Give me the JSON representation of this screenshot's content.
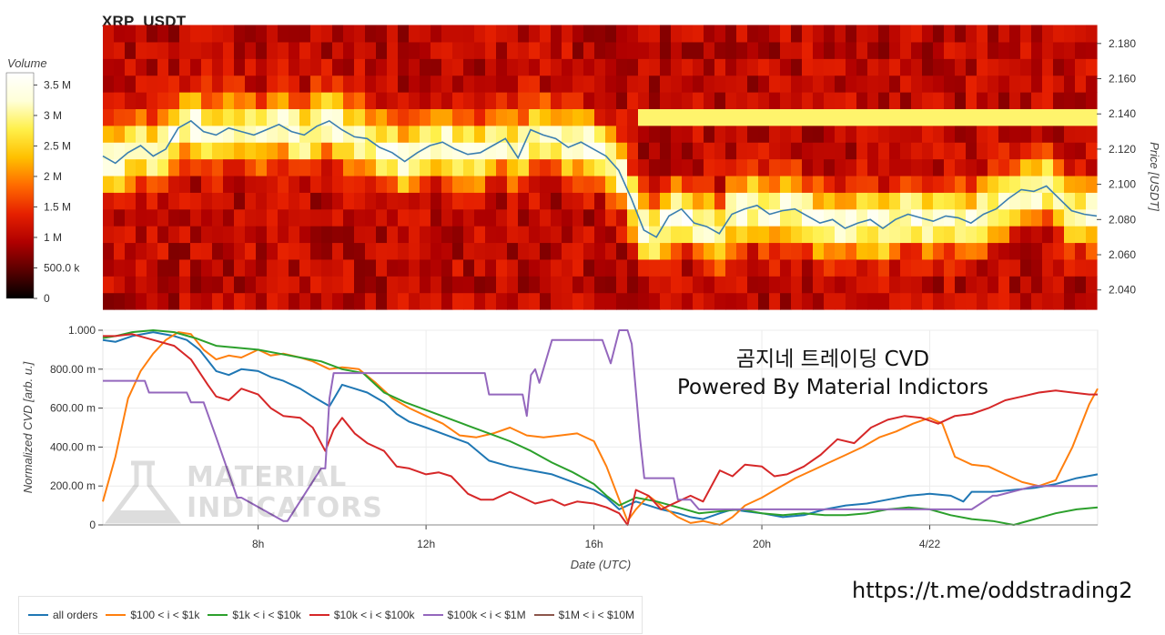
{
  "title": "XRP_USDT",
  "overlay": {
    "line1": "곰지네 트레이딩 CVD",
    "line2": "Powered By Material Indictors"
  },
  "url": "https://t.me/oddstrading2",
  "watermark": {
    "line1": "MATERIAL",
    "line2": "INDICATORS"
  },
  "heatmap": {
    "colorbar_label": "Volume",
    "colorbar_ticks": [
      {
        "v": 0,
        "label": "0"
      },
      {
        "v": 0.5,
        "label": "500.0 k"
      },
      {
        "v": 1,
        "label": "1 M"
      },
      {
        "v": 1.5,
        "label": "1.5 M"
      },
      {
        "v": 2,
        "label": "2 M"
      },
      {
        "v": 2.5,
        "label": "2.5 M"
      },
      {
        "v": 3,
        "label": "3 M"
      },
      {
        "v": 3.5,
        "label": "3.5 M"
      }
    ],
    "colorbar_max": 3.7,
    "ylabel": "Price [USDT]",
    "price_ticks": [
      {
        "v": 2.18,
        "label": "2.180"
      },
      {
        "v": 2.16,
        "label": "2.160"
      },
      {
        "v": 2.14,
        "label": "2.140"
      },
      {
        "v": 2.12,
        "label": "2.120"
      },
      {
        "v": 2.1,
        "label": "2.100"
      },
      {
        "v": 2.08,
        "label": "2.080"
      },
      {
        "v": 2.06,
        "label": "2.060"
      },
      {
        "v": 2.04,
        "label": "2.040"
      }
    ],
    "price_range": [
      2.029,
      2.183
    ],
    "colors": [
      "#000000",
      "#5a0000",
      "#b00000",
      "#e62000",
      "#ff6a00",
      "#ffc000",
      "#fff04a",
      "#ffffd8",
      "#ffffff"
    ]
  },
  "chart_data": {
    "type": "line",
    "x_range": [
      4.3,
      28.0
    ],
    "x_ticks": [
      {
        "v": 8,
        "label": "8h"
      },
      {
        "v": 12,
        "label": "12h"
      },
      {
        "v": 16,
        "label": "16h"
      },
      {
        "v": 20,
        "label": "20h"
      },
      {
        "v": 24,
        "label": "4/22"
      }
    ],
    "xlabel": "Date (UTC)",
    "ylabel": "Normalized CVD [arb. u.]",
    "ylim": [
      0,
      1
    ],
    "y_ticks": [
      {
        "v": 0,
        "label": "0"
      },
      {
        "v": 0.2,
        "label": "200.00 m"
      },
      {
        "v": 0.4,
        "label": "400.00 m"
      },
      {
        "v": 0.6,
        "label": "600.00 m"
      },
      {
        "v": 0.8,
        "label": "800.00 m"
      },
      {
        "v": 1.0,
        "label": "1.000"
      }
    ],
    "price_series": {
      "x": [
        4.3,
        4.6,
        4.9,
        5.2,
        5.5,
        5.8,
        6.1,
        6.4,
        6.7,
        7.0,
        7.3,
        7.6,
        7.9,
        8.2,
        8.5,
        8.8,
        9.1,
        9.4,
        9.7,
        10.0,
        10.3,
        10.6,
        10.9,
        11.2,
        11.5,
        11.8,
        12.1,
        12.4,
        12.7,
        13.0,
        13.3,
        13.6,
        13.9,
        14.2,
        14.5,
        14.8,
        15.1,
        15.4,
        15.7,
        16.0,
        16.3,
        16.6,
        16.9,
        17.2,
        17.5,
        17.8,
        18.1,
        18.4,
        18.7,
        19.0,
        19.3,
        19.6,
        19.9,
        20.2,
        20.5,
        20.8,
        21.1,
        21.4,
        21.7,
        22.0,
        22.3,
        22.6,
        22.9,
        23.2,
        23.5,
        23.8,
        24.1,
        24.4,
        24.7,
        25.0,
        25.3,
        25.6,
        25.9,
        26.2,
        26.5,
        26.8,
        27.1,
        27.4,
        27.7,
        28.0
      ],
      "y": [
        2.116,
        2.112,
        2.118,
        2.122,
        2.116,
        2.12,
        2.132,
        2.136,
        2.13,
        2.128,
        2.132,
        2.13,
        2.128,
        2.131,
        2.134,
        2.13,
        2.128,
        2.133,
        2.136,
        2.131,
        2.127,
        2.126,
        2.121,
        2.118,
        2.113,
        2.118,
        2.122,
        2.124,
        2.12,
        2.117,
        2.118,
        2.122,
        2.126,
        2.115,
        2.131,
        2.128,
        2.126,
        2.121,
        2.124,
        2.12,
        2.116,
        2.108,
        2.092,
        2.074,
        2.07,
        2.082,
        2.086,
        2.078,
        2.076,
        2.072,
        2.083,
        2.086,
        2.088,
        2.083,
        2.085,
        2.086,
        2.082,
        2.078,
        2.08,
        2.075,
        2.078,
        2.08,
        2.075,
        2.08,
        2.083,
        2.081,
        2.079,
        2.082,
        2.081,
        2.078,
        2.083,
        2.086,
        2.092,
        2.097,
        2.096,
        2.099,
        2.092,
        2.085,
        2.083,
        2.082
      ]
    },
    "series": [
      {
        "name": "all orders",
        "color": "#1f77b4",
        "x": [
          4.3,
          4.6,
          5.0,
          5.5,
          6.0,
          6.3,
          6.6,
          7.0,
          7.3,
          7.6,
          8.0,
          8.3,
          8.6,
          9.0,
          9.3,
          9.7,
          10.0,
          10.3,
          10.6,
          11.0,
          11.3,
          11.6,
          12.0,
          12.5,
          13.0,
          13.5,
          14.0,
          14.5,
          15.0,
          15.5,
          16.0,
          16.3,
          16.6,
          17.0,
          17.3,
          17.6,
          18.0,
          18.3,
          18.6,
          19.0,
          19.3,
          19.6,
          20.0,
          20.5,
          21.0,
          21.5,
          22.0,
          22.5,
          23.0,
          23.5,
          24.0,
          24.5,
          24.8,
          25.0,
          25.5,
          26.0,
          26.5,
          27.0,
          27.5,
          28.0
        ],
        "y": [
          0.95,
          0.94,
          0.97,
          0.99,
          0.97,
          0.95,
          0.9,
          0.79,
          0.77,
          0.8,
          0.79,
          0.76,
          0.74,
          0.7,
          0.66,
          0.61,
          0.72,
          0.7,
          0.68,
          0.63,
          0.57,
          0.53,
          0.5,
          0.46,
          0.42,
          0.33,
          0.3,
          0.28,
          0.26,
          0.22,
          0.18,
          0.14,
          0.08,
          0.12,
          0.1,
          0.08,
          0.06,
          0.04,
          0.03,
          0.06,
          0.08,
          0.07,
          0.06,
          0.04,
          0.05,
          0.08,
          0.1,
          0.11,
          0.13,
          0.15,
          0.16,
          0.15,
          0.12,
          0.17,
          0.17,
          0.18,
          0.19,
          0.21,
          0.24,
          0.26
        ]
      },
      {
        "name": "$100 < i < $1k",
        "color": "#ff7f0e",
        "x": [
          4.3,
          4.6,
          4.9,
          5.2,
          5.5,
          5.8,
          6.1,
          6.4,
          6.7,
          7.0,
          7.3,
          7.6,
          8.0,
          8.3,
          8.6,
          9.0,
          9.3,
          9.7,
          10.0,
          10.4,
          10.8,
          11.2,
          11.6,
          12.0,
          12.4,
          12.8,
          13.2,
          13.6,
          14.0,
          14.4,
          14.8,
          15.2,
          15.6,
          16.0,
          16.3,
          16.6,
          16.8,
          17.0,
          17.3,
          17.6,
          18.0,
          18.3,
          18.6,
          19.0,
          19.3,
          19.6,
          20.0,
          20.4,
          20.8,
          21.2,
          21.6,
          22.0,
          22.4,
          22.8,
          23.2,
          23.6,
          24.0,
          24.3,
          24.6,
          25.0,
          25.4,
          25.8,
          26.2,
          26.6,
          27.0,
          27.4,
          27.8,
          28.0
        ],
        "y": [
          0.12,
          0.35,
          0.65,
          0.79,
          0.88,
          0.95,
          0.99,
          0.98,
          0.9,
          0.85,
          0.87,
          0.86,
          0.9,
          0.87,
          0.88,
          0.86,
          0.84,
          0.8,
          0.81,
          0.8,
          0.73,
          0.65,
          0.6,
          0.56,
          0.52,
          0.46,
          0.45,
          0.47,
          0.5,
          0.46,
          0.45,
          0.46,
          0.47,
          0.43,
          0.3,
          0.13,
          0.02,
          0.08,
          0.15,
          0.1,
          0.04,
          0.01,
          0.02,
          0.0,
          0.04,
          0.1,
          0.14,
          0.19,
          0.24,
          0.28,
          0.32,
          0.36,
          0.4,
          0.45,
          0.48,
          0.52,
          0.55,
          0.52,
          0.35,
          0.31,
          0.3,
          0.26,
          0.22,
          0.2,
          0.23,
          0.4,
          0.62,
          0.7
        ]
      },
      {
        "name": "$1k < i < $10k",
        "color": "#2ca02c",
        "x": [
          4.3,
          4.6,
          5.0,
          5.5,
          6.0,
          6.5,
          7.0,
          7.5,
          8.0,
          8.5,
          9.0,
          9.5,
          10.0,
          10.5,
          11.0,
          11.5,
          12.0,
          12.5,
          13.0,
          13.5,
          14.0,
          14.5,
          15.0,
          15.5,
          16.0,
          16.3,
          16.6,
          17.0,
          17.5,
          18.0,
          18.5,
          19.0,
          19.5,
          20.0,
          20.5,
          21.0,
          21.5,
          22.0,
          22.5,
          23.0,
          23.5,
          24.0,
          24.5,
          25.0,
          25.5,
          26.0,
          26.5,
          27.0,
          27.5,
          28.0
        ],
        "y": [
          0.96,
          0.97,
          0.99,
          1.0,
          0.99,
          0.96,
          0.92,
          0.91,
          0.9,
          0.88,
          0.86,
          0.84,
          0.8,
          0.78,
          0.68,
          0.63,
          0.59,
          0.55,
          0.51,
          0.47,
          0.43,
          0.38,
          0.32,
          0.27,
          0.21,
          0.15,
          0.1,
          0.14,
          0.12,
          0.09,
          0.06,
          0.07,
          0.08,
          0.06,
          0.05,
          0.06,
          0.05,
          0.05,
          0.06,
          0.08,
          0.09,
          0.08,
          0.05,
          0.03,
          0.02,
          0.0,
          0.03,
          0.06,
          0.08,
          0.09
        ]
      },
      {
        "name": "$10k < i < $100k",
        "color": "#d62728",
        "x": [
          4.3,
          4.6,
          5.0,
          5.5,
          6.0,
          6.4,
          6.8,
          7.0,
          7.3,
          7.6,
          8.0,
          8.3,
          8.6,
          9.0,
          9.3,
          9.6,
          9.8,
          10.0,
          10.3,
          10.6,
          11.0,
          11.3,
          11.6,
          12.0,
          12.3,
          12.6,
          13.0,
          13.3,
          13.6,
          14.0,
          14.3,
          14.6,
          15.0,
          15.3,
          15.6,
          16.0,
          16.3,
          16.6,
          16.8,
          17.0,
          17.3,
          17.6,
          18.0,
          18.3,
          18.6,
          19.0,
          19.3,
          19.6,
          20.0,
          20.3,
          20.6,
          21.0,
          21.4,
          21.8,
          22.2,
          22.6,
          23.0,
          23.4,
          23.8,
          24.2,
          24.6,
          25.0,
          25.4,
          25.8,
          26.2,
          26.6,
          27.0,
          27.4,
          27.8,
          28.0
        ],
        "y": [
          0.97,
          0.97,
          0.98,
          0.95,
          0.92,
          0.85,
          0.72,
          0.66,
          0.64,
          0.7,
          0.67,
          0.6,
          0.56,
          0.55,
          0.5,
          0.38,
          0.49,
          0.55,
          0.47,
          0.42,
          0.38,
          0.3,
          0.29,
          0.26,
          0.27,
          0.25,
          0.16,
          0.13,
          0.13,
          0.17,
          0.14,
          0.11,
          0.13,
          0.1,
          0.12,
          0.11,
          0.09,
          0.06,
          0.0,
          0.18,
          0.15,
          0.08,
          0.12,
          0.15,
          0.12,
          0.28,
          0.25,
          0.31,
          0.3,
          0.25,
          0.26,
          0.3,
          0.36,
          0.44,
          0.42,
          0.5,
          0.54,
          0.56,
          0.55,
          0.52,
          0.56,
          0.57,
          0.6,
          0.64,
          0.66,
          0.68,
          0.69,
          0.68,
          0.67,
          0.67
        ]
      },
      {
        "name": "$100k < i < $1M",
        "color": "#9467bd",
        "x": [
          4.3,
          5.3,
          5.4,
          6.3,
          6.4,
          6.7,
          7.0,
          7.5,
          7.6,
          8.6,
          8.7,
          9.5,
          9.6,
          9.7,
          9.8,
          10.0,
          11.0,
          13.4,
          13.5,
          14.3,
          14.4,
          14.5,
          14.6,
          14.7,
          15.0,
          16.2,
          16.4,
          16.6,
          16.8,
          16.9,
          17.1,
          17.2,
          17.9,
          18.0,
          18.3,
          18.5,
          19.0,
          21.0,
          23.0,
          25.0,
          25.5,
          25.6,
          26.5,
          28.0
        ],
        "y": [
          0.74,
          0.74,
          0.68,
          0.68,
          0.63,
          0.63,
          0.45,
          0.14,
          0.14,
          0.02,
          0.02,
          0.29,
          0.29,
          0.65,
          0.78,
          0.78,
          0.78,
          0.78,
          0.67,
          0.67,
          0.56,
          0.77,
          0.8,
          0.73,
          0.95,
          0.95,
          0.83,
          1.0,
          1.0,
          0.93,
          0.44,
          0.24,
          0.24,
          0.13,
          0.13,
          0.08,
          0.08,
          0.08,
          0.08,
          0.08,
          0.15,
          0.15,
          0.2,
          0.2
        ]
      },
      {
        "name": "$1M < i < $10M",
        "color": "#8c564b",
        "x": [],
        "y": []
      }
    ]
  }
}
